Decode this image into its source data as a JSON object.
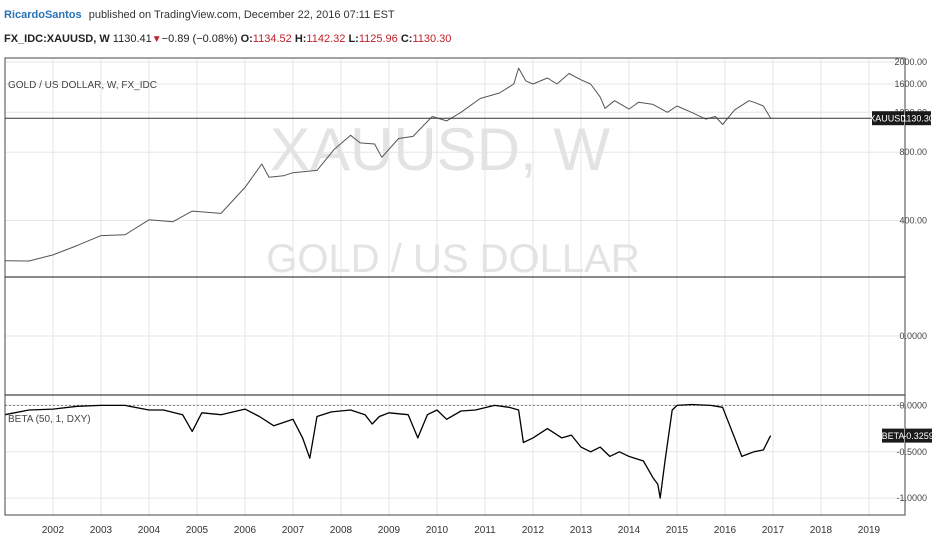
{
  "header": {
    "author": "RicardoSantos",
    "published_text": "published on TradingView.com, December 22, 2016 07:11 EST",
    "symbol": "FX_IDC:XAUUSD, W",
    "last_price": "1130.41",
    "change_arrow": "▼",
    "change": "−0.89 (−0.08%)",
    "open_label": "O:",
    "open": "1134.52",
    "high_label": "H:",
    "high": "1142.32",
    "low_label": "L:",
    "low": "1125.96",
    "close_label": "C:",
    "close": "1130.30"
  },
  "colors": {
    "price_line": "#555555",
    "beta_line": "#000000",
    "watermark": "#e3e3e3",
    "grid": "#e6e6e6",
    "border": "#444444"
  },
  "chart_data": [
    {
      "type": "line",
      "title": "GOLD / US DOLLAR, W, FX_IDC",
      "watermark_symbol": "XAUUSD, W",
      "watermark_name": "GOLD / US DOLLAR",
      "y_scale": "log",
      "ylim": [
        230,
        2000
      ],
      "y_ticks": [
        "2000.00",
        "1600.00",
        "1200.00",
        "800.00",
        "400.00"
      ],
      "y_tick_values": [
        2000,
        1600,
        1200,
        800,
        400
      ],
      "last_value_label": "1130.30",
      "last_value": 1130.3,
      "series_label": "XAUUSD",
      "series": [
        {
          "name": "XAUUSD",
          "x": [
            2001.0,
            2001.5,
            2002.0,
            2002.5,
            2003.0,
            2003.5,
            2004.0,
            2004.5,
            2004.9,
            2005.5,
            2006.0,
            2006.35,
            2006.5,
            2006.8,
            2007.0,
            2007.5,
            2007.85,
            2008.2,
            2008.4,
            2008.7,
            2008.85,
            2009.2,
            2009.5,
            2009.9,
            2010.2,
            2010.5,
            2010.9,
            2011.3,
            2011.6,
            2011.7,
            2011.85,
            2012.0,
            2012.3,
            2012.5,
            2012.75,
            2013.0,
            2013.2,
            2013.4,
            2013.5,
            2013.7,
            2014.0,
            2014.2,
            2014.5,
            2014.8,
            2015.0,
            2015.3,
            2015.6,
            2015.8,
            2015.95,
            2016.2,
            2016.5,
            2016.6,
            2016.8,
            2016.95
          ],
          "y": [
            266,
            265,
            282,
            310,
            343,
            346,
            403,
            395,
            440,
            430,
            560,
            710,
            620,
            630,
            650,
            665,
            820,
            950,
            880,
            870,
            760,
            920,
            940,
            1150,
            1100,
            1200,
            1380,
            1460,
            1600,
            1880,
            1650,
            1600,
            1700,
            1600,
            1780,
            1670,
            1600,
            1400,
            1250,
            1350,
            1240,
            1330,
            1300,
            1200,
            1280,
            1200,
            1120,
            1150,
            1060,
            1230,
            1350,
            1330,
            1280,
            1130
          ]
        }
      ]
    },
    {
      "type": "line",
      "title": "",
      "y_ticks": [
        "0.0000"
      ],
      "series": []
    },
    {
      "type": "line",
      "title": "BETA (50, 1, DXY)",
      "ylim": [
        -1.15,
        0.08
      ],
      "y_ticks": [
        "0.0000",
        "-0.5000",
        "-1.0000"
      ],
      "y_tick_values": [
        0,
        -0.5,
        -1
      ],
      "last_value_label": "-0.3259",
      "last_value": -0.3259,
      "series_label": "BETA",
      "series": [
        {
          "name": "BETA",
          "x": [
            2001.0,
            2001.5,
            2002.0,
            2002.5,
            2003.0,
            2003.5,
            2004.0,
            2004.3,
            2004.7,
            2004.9,
            2005.1,
            2005.5,
            2006.0,
            2006.3,
            2006.6,
            2007.0,
            2007.2,
            2007.35,
            2007.5,
            2007.8,
            2008.2,
            2008.5,
            2008.65,
            2008.8,
            2009.0,
            2009.4,
            2009.6,
            2009.8,
            2010.0,
            2010.2,
            2010.5,
            2010.8,
            2011.2,
            2011.5,
            2011.7,
            2011.8,
            2012.0,
            2012.3,
            2012.6,
            2012.8,
            2013.0,
            2013.2,
            2013.4,
            2013.6,
            2013.8,
            2014.0,
            2014.3,
            2014.5,
            2014.6,
            2014.65,
            2014.75,
            2014.9,
            2015.0,
            2015.3,
            2015.7,
            2015.95,
            2016.2,
            2016.35,
            2016.5,
            2016.6,
            2016.8,
            2016.95
          ],
          "x_note": "",
          "y": [
            -0.1,
            -0.05,
            -0.04,
            -0.01,
            0.0,
            0.0,
            -0.05,
            -0.05,
            -0.1,
            -0.28,
            -0.08,
            -0.1,
            -0.04,
            -0.12,
            -0.22,
            -0.15,
            -0.35,
            -0.57,
            -0.12,
            -0.07,
            -0.05,
            -0.1,
            -0.2,
            -0.12,
            -0.08,
            -0.1,
            -0.35,
            -0.1,
            -0.05,
            -0.15,
            -0.06,
            -0.05,
            0.0,
            -0.02,
            -0.05,
            -0.4,
            -0.35,
            -0.25,
            -0.35,
            -0.32,
            -0.45,
            -0.5,
            -0.45,
            -0.55,
            -0.5,
            -0.55,
            -0.6,
            -0.78,
            -0.85,
            -1.0,
            -0.6,
            -0.05,
            0.0,
            0.01,
            0.0,
            -0.02,
            -0.35,
            -0.55,
            -0.52,
            -0.5,
            -0.48,
            -0.3259
          ]
        }
      ]
    }
  ],
  "x_axis": {
    "labels": [
      "2002",
      "2003",
      "2004",
      "2005",
      "2006",
      "2007",
      "2008",
      "2009",
      "2010",
      "2011",
      "2012",
      "2013",
      "2014",
      "2015",
      "2016",
      "2017",
      "2018",
      "2019"
    ],
    "values": [
      2002,
      2003,
      2004,
      2005,
      2006,
      2007,
      2008,
      2009,
      2010,
      2011,
      2012,
      2013,
      2014,
      2015,
      2016,
      2017,
      2018,
      2019
    ],
    "xlim": [
      2001.0,
      2019.75
    ]
  }
}
